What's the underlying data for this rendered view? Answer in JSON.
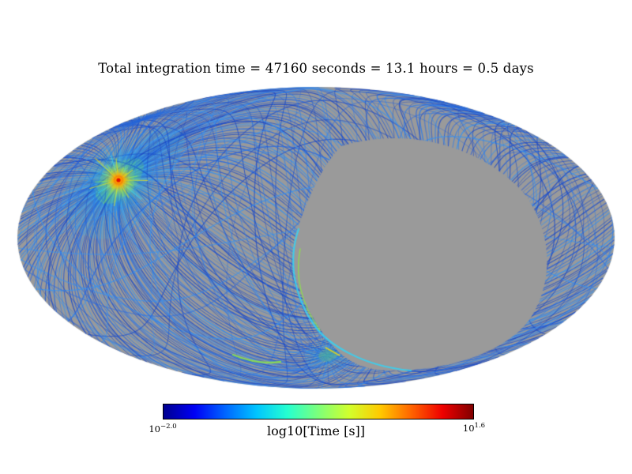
{
  "chart_data": {
    "type": "heatmap",
    "projection": "mollweide",
    "title": "Total integration time = 47160 seconds = 13.1 hours = 0.5 days",
    "total_integration_time": {
      "seconds": 47160,
      "hours": 13.1,
      "days": 0.5
    },
    "colorbar": {
      "label": "log10[Time [s]]",
      "scale_base": "10",
      "min_exponent": "−2.0",
      "max_exponent": "1.6",
      "vmin_log10": -2.0,
      "vmax_log10": 1.6,
      "colormap": "jet",
      "gradient": [
        "#00008f",
        "#0000f5",
        "#0066ff",
        "#00c4ff",
        "#25ffd0",
        "#7dff7a",
        "#d2ff2c",
        "#ffc900",
        "#ff6400",
        "#ef0000",
        "#800000"
      ]
    },
    "map": {
      "background": "#ffffff",
      "unobserved_color": "#9a9a9a",
      "scan_palette": [
        "#1a49c8",
        "#2158d8",
        "#2868e0",
        "#2f7ce8",
        "#3a92ee",
        "#1e52d0"
      ],
      "halo_cyan": "#35d2f5",
      "halo_green": "#8ee04e",
      "halo_yellow": "#ffe000",
      "hotspot_core": "#e01000",
      "hotspot_ring": "#ff9900"
    }
  }
}
